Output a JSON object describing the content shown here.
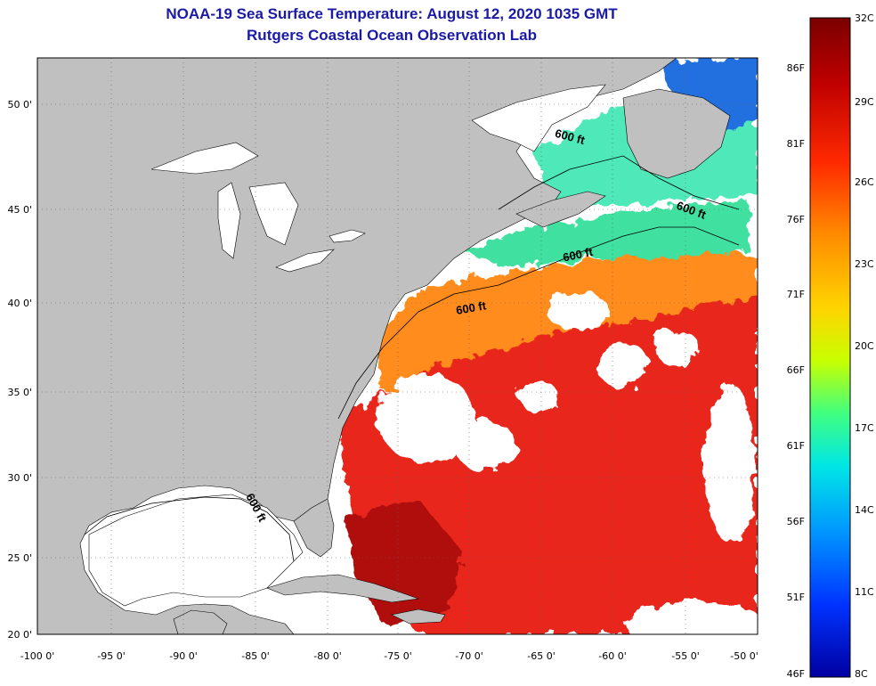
{
  "header": {
    "title": "NOAA-19 Sea Surface Temperature:  August 12, 2020 1035 GMT",
    "subtitle": "Rutgers Coastal Ocean Observation Lab"
  },
  "axes": {
    "lon_labels": [
      "-100 0'",
      "-95 0'",
      "-90 0'",
      "-85 0'",
      "-80 0'",
      "-75 0'",
      "-70 0'",
      "-65 0'",
      "-60 0'",
      "-55 0'",
      "-50 0'"
    ],
    "lat_labels": [
      "50 0'",
      "45 0'",
      "40 0'",
      "35 0'",
      "30 0'",
      "25 0'",
      "20 0'"
    ]
  },
  "contours": {
    "depth_label": "600 ft"
  },
  "colorbar": {
    "celsius_labels": [
      "32C",
      "29C",
      "26C",
      "23C",
      "20C",
      "17C",
      "14C",
      "11C",
      "8C"
    ],
    "fahrenheit_labels": [
      "86F",
      "81F",
      "76F",
      "71F",
      "66F",
      "61F",
      "56F",
      "51F",
      "46F"
    ],
    "colors": [
      "#7a0000",
      "#c00000",
      "#ff2a00",
      "#ff8c00",
      "#ffd400",
      "#c8ff00",
      "#40ff80",
      "#00e6e6",
      "#0096ff",
      "#0033ff",
      "#0000a0"
    ]
  },
  "map_colors": {
    "land": "#c0c0c0",
    "cloud": "#ffffff",
    "warm_water": "#e8281a",
    "hot_water": "#b01010",
    "shelf_water": "#ff8c1a",
    "cool_water": "#30d8c0",
    "cold_water": "#2070e0"
  }
}
